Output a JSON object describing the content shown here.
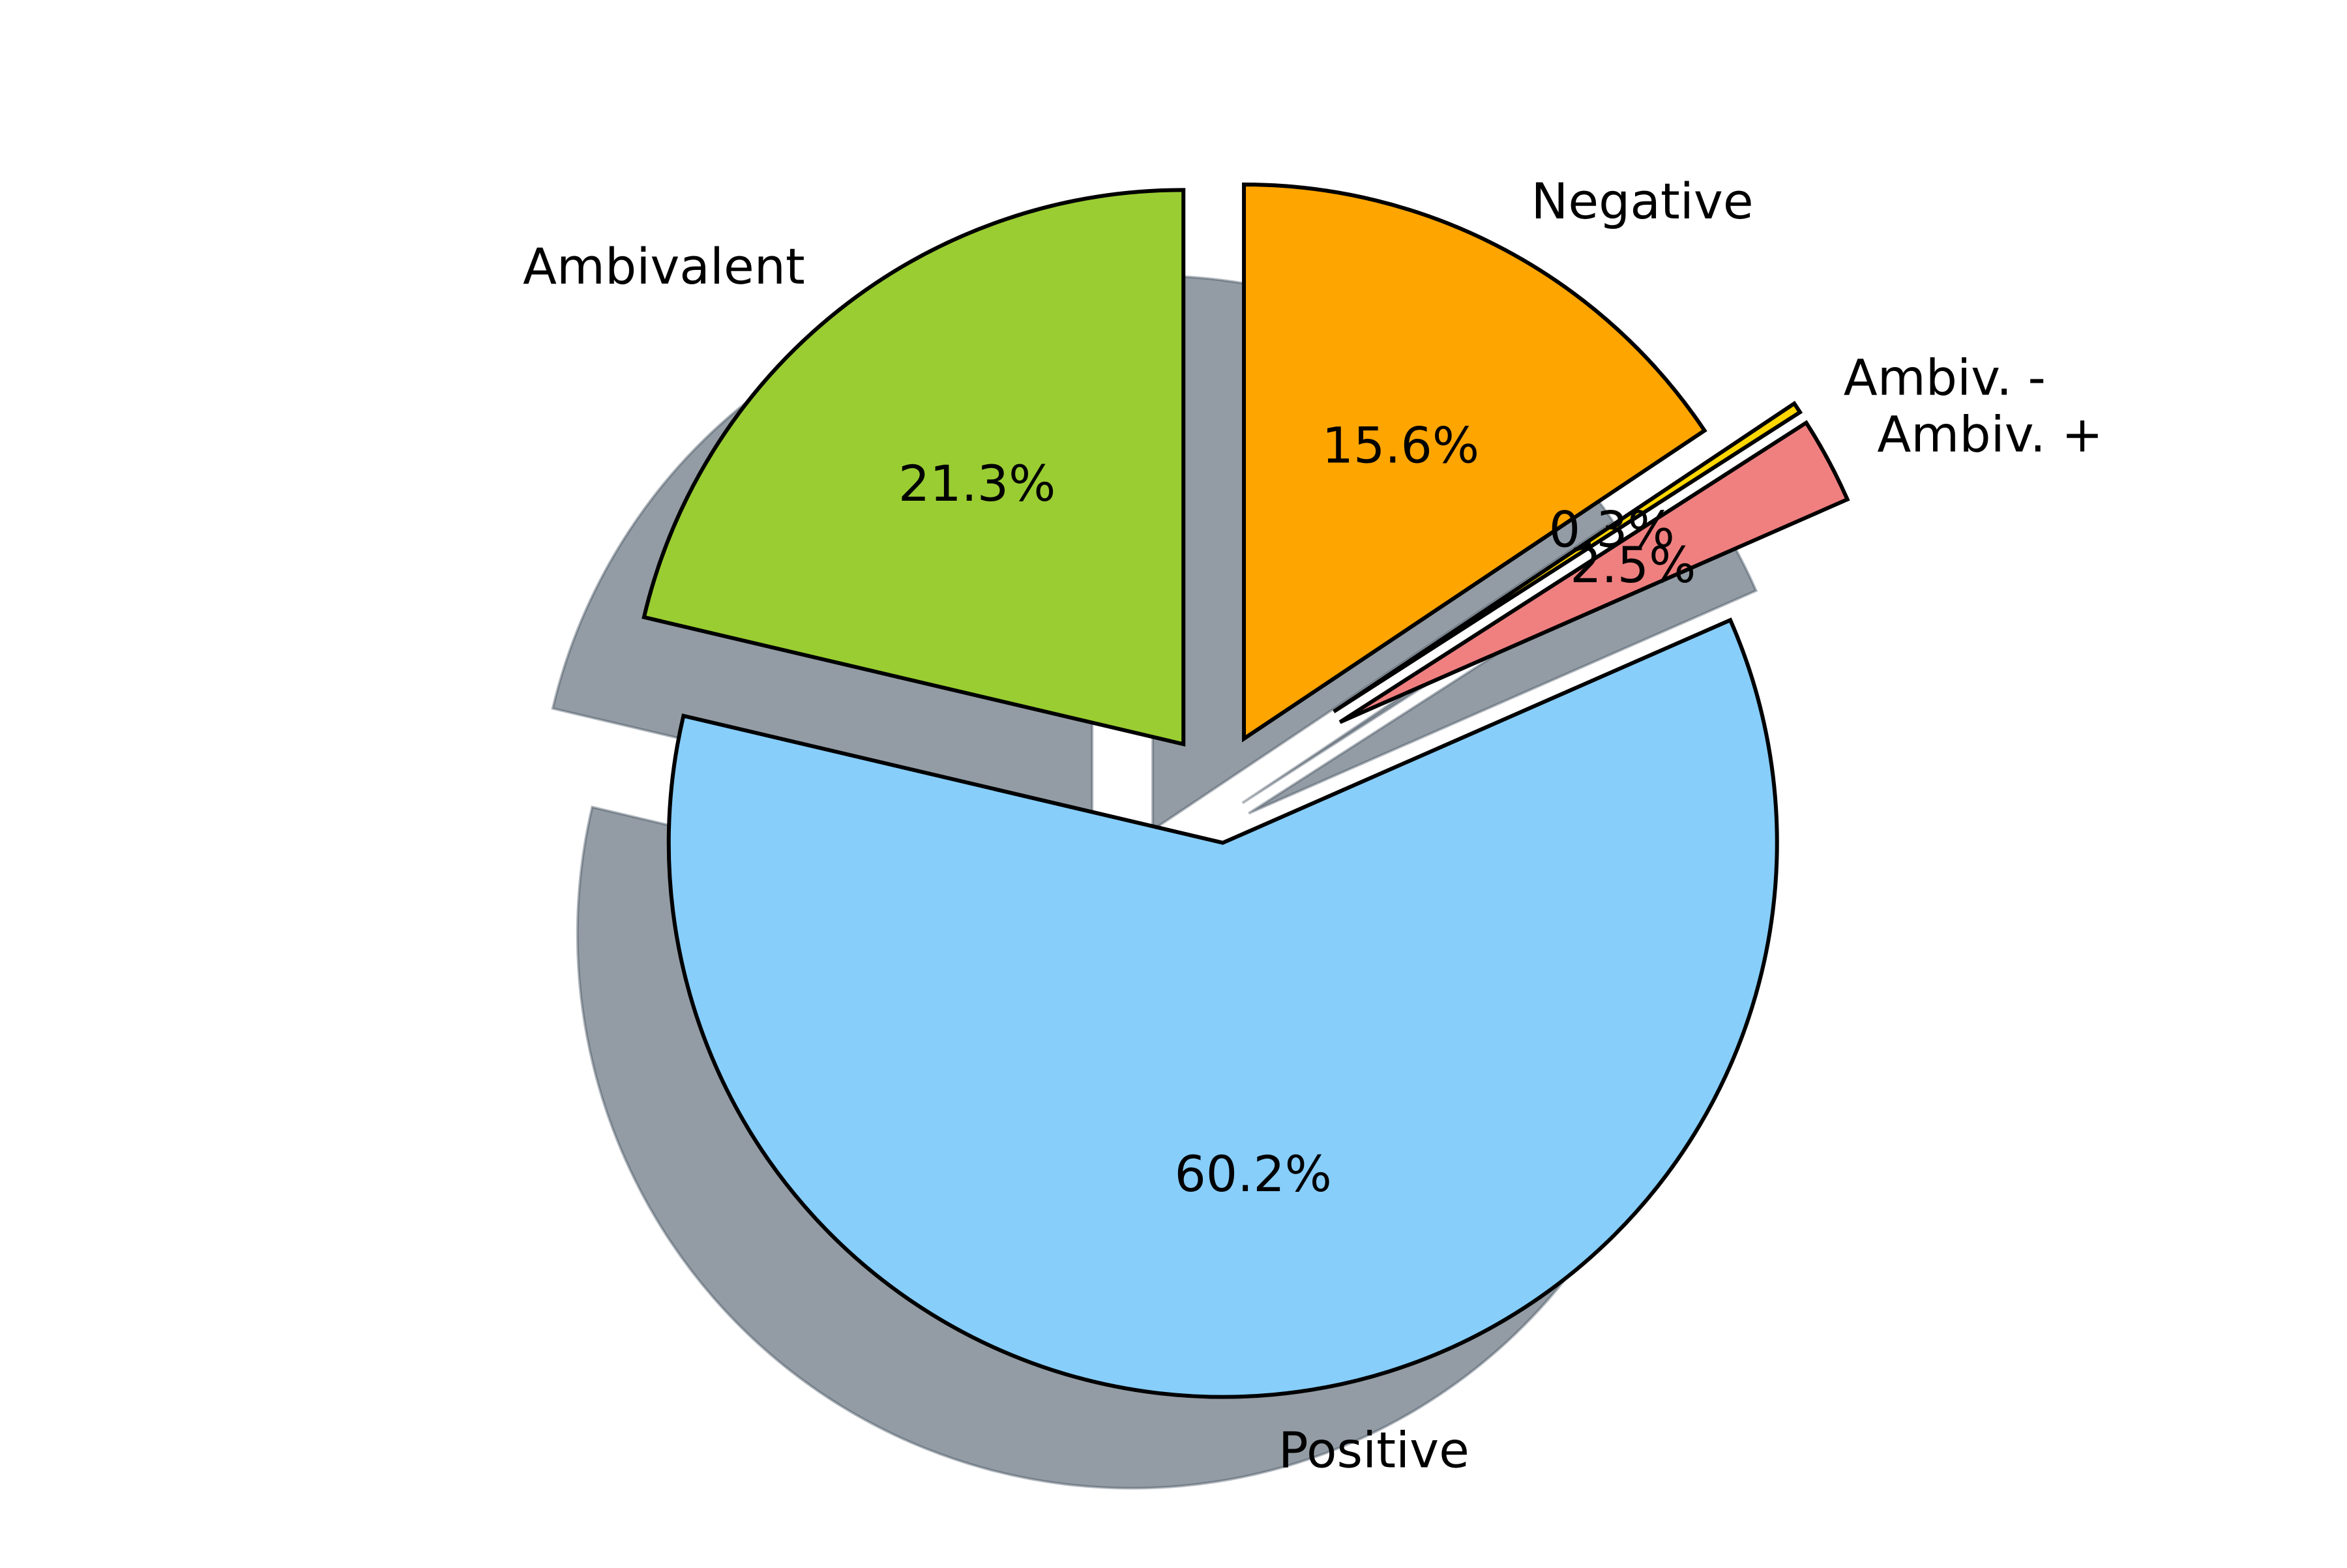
{
  "chart_data": {
    "type": "pie",
    "title": "",
    "start_angle_deg": 90,
    "direction": "counterclockwise",
    "shadow": true,
    "legend": "none",
    "slices": [
      {
        "label": "Ambivalent",
        "value": 21.3,
        "pct_label": "21.3%",
        "color": "#9ACD32",
        "exploded": true
      },
      {
        "label": "Positive",
        "value": 60.2,
        "pct_label": "60.2%",
        "color": "#87CEFA",
        "exploded": true
      },
      {
        "label": "Ambiv. +",
        "value": 2.5,
        "pct_label": "2.5%",
        "color": "#F08080",
        "exploded": true
      },
      {
        "label": "Ambiv. -",
        "value": 0.3,
        "pct_label": "0.3%",
        "color": "#FFD700",
        "exploded": true
      },
      {
        "label": "Negative",
        "value": 15.6,
        "pct_label": "15.6%",
        "color": "#FFA500",
        "exploded": true
      }
    ]
  }
}
